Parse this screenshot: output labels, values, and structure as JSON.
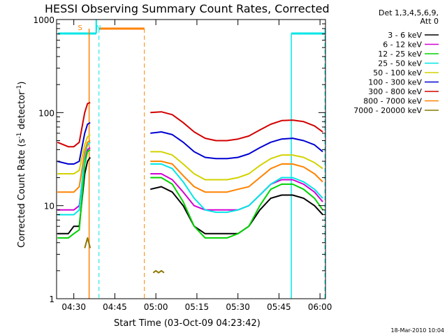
{
  "chart_data": {
    "type": "line",
    "title": "HESSI Observing Summary Count Rates, Corrected",
    "xlabel": "Start Time (03-Oct-09 04:23:42)",
    "ylabel": "Corrected Count Rate (s⁻¹ detector⁻¹)",
    "ylabel_main": "Corrected Count Rate (s",
    "ylabel_sup1": "-1",
    "ylabel_mid": " detector",
    "ylabel_sup2": "-1",
    "ylabel_end": ")",
    "yscale": "log",
    "ylim": [
      1,
      1000
    ],
    "xlim_minutes": [
      23.7,
      122.0
    ],
    "x_ticks": [
      {
        "label": "04:30",
        "minute": 30
      },
      {
        "label": "04:45",
        "minute": 45
      },
      {
        "label": "05:00",
        "minute": 60
      },
      {
        "label": "05:15",
        "minute": 75
      },
      {
        "label": "05:30",
        "minute": 90
      },
      {
        "label": "05:45",
        "minute": 105
      },
      {
        "label": "06:00",
        "minute": 120
      }
    ],
    "y_ticks": [
      {
        "label": "1",
        "value": 1
      },
      {
        "label": "10",
        "value": 10
      },
      {
        "label": "100",
        "value": 100
      },
      {
        "label": "1000",
        "value": 1000
      }
    ],
    "legend_header": [
      "Det 1,3,4,5,6,9,",
      "Att 0"
    ],
    "series": [
      {
        "name": "3 - 6 keV",
        "color": "#000000",
        "key": [
          [
            24,
            5
          ],
          [
            28,
            5
          ],
          [
            30,
            6
          ],
          [
            32,
            6
          ],
          [
            34,
            22
          ],
          [
            35,
            30
          ],
          [
            36,
            33
          ],
          [
            57.5,
            null
          ],
          [
            58,
            15
          ],
          [
            62,
            16
          ],
          [
            66,
            14
          ],
          [
            70,
            10
          ],
          [
            74,
            6
          ],
          [
            78,
            5
          ],
          [
            82,
            5
          ],
          [
            86,
            5
          ],
          [
            90,
            5
          ],
          [
            94,
            6
          ],
          [
            98,
            9
          ],
          [
            102,
            12
          ],
          [
            106,
            13
          ],
          [
            110,
            13
          ],
          [
            114,
            12
          ],
          [
            118,
            10
          ],
          [
            121,
            8
          ]
        ]
      },
      {
        "name": "6 - 12 keV",
        "color": "#d200d2",
        "key": [
          [
            24,
            9
          ],
          [
            28,
            9
          ],
          [
            30,
            9
          ],
          [
            32,
            10
          ],
          [
            34,
            30
          ],
          [
            35,
            40
          ],
          [
            36,
            42
          ],
          [
            57.5,
            null
          ],
          [
            58,
            22
          ],
          [
            62,
            22
          ],
          [
            66,
            19
          ],
          [
            70,
            14
          ],
          [
            74,
            10
          ],
          [
            78,
            9
          ],
          [
            82,
            9
          ],
          [
            86,
            9
          ],
          [
            90,
            9
          ],
          [
            94,
            10
          ],
          [
            98,
            13
          ],
          [
            102,
            17
          ],
          [
            106,
            19
          ],
          [
            110,
            19
          ],
          [
            114,
            17
          ],
          [
            118,
            14
          ],
          [
            121,
            11
          ]
        ]
      },
      {
        "name": "12 - 25 keV",
        "color": "#00d200",
        "key": [
          [
            24,
            4.5
          ],
          [
            28,
            4.5
          ],
          [
            30,
            5
          ],
          [
            32,
            5.5
          ],
          [
            34,
            28
          ],
          [
            35,
            38
          ],
          [
            36,
            40
          ],
          [
            57.5,
            null
          ],
          [
            58,
            20
          ],
          [
            62,
            20
          ],
          [
            66,
            17
          ],
          [
            70,
            11
          ],
          [
            74,
            6
          ],
          [
            78,
            4.5
          ],
          [
            82,
            4.5
          ],
          [
            86,
            4.5
          ],
          [
            90,
            5
          ],
          [
            94,
            6
          ],
          [
            98,
            10
          ],
          [
            102,
            15
          ],
          [
            106,
            17
          ],
          [
            110,
            17
          ],
          [
            114,
            15
          ],
          [
            118,
            12
          ],
          [
            121,
            9
          ]
        ]
      },
      {
        "name": "25 - 50 keV",
        "color": "#00e6e6",
        "key": [
          [
            24,
            8
          ],
          [
            28,
            8
          ],
          [
            30,
            8
          ],
          [
            32,
            9
          ],
          [
            34,
            35
          ],
          [
            35,
            45
          ],
          [
            36,
            48
          ],
          [
            57.5,
            null
          ],
          [
            58,
            28
          ],
          [
            62,
            28
          ],
          [
            66,
            25
          ],
          [
            70,
            18
          ],
          [
            74,
            12
          ],
          [
            78,
            9
          ],
          [
            82,
            8.5
          ],
          [
            86,
            8.5
          ],
          [
            90,
            9
          ],
          [
            94,
            10
          ],
          [
            98,
            13
          ],
          [
            102,
            17
          ],
          [
            106,
            20
          ],
          [
            110,
            20
          ],
          [
            114,
            18
          ],
          [
            118,
            15
          ],
          [
            121,
            12
          ]
        ]
      },
      {
        "name": "50 - 100 keV",
        "color": "#d2d200",
        "key": [
          [
            24,
            22
          ],
          [
            28,
            22
          ],
          [
            30,
            22
          ],
          [
            32,
            24
          ],
          [
            34,
            45
          ],
          [
            35,
            55
          ],
          [
            36,
            58
          ],
          [
            57.5,
            null
          ],
          [
            58,
            38
          ],
          [
            62,
            38
          ],
          [
            66,
            35
          ],
          [
            70,
            28
          ],
          [
            74,
            22
          ],
          [
            78,
            19
          ],
          [
            82,
            19
          ],
          [
            86,
            19
          ],
          [
            90,
            20
          ],
          [
            94,
            22
          ],
          [
            98,
            27
          ],
          [
            102,
            32
          ],
          [
            106,
            35
          ],
          [
            110,
            35
          ],
          [
            114,
            33
          ],
          [
            118,
            29
          ],
          [
            121,
            25
          ]
        ]
      },
      {
        "name": "100 - 300 keV",
        "color": "#0000d2",
        "key": [
          [
            24,
            30
          ],
          [
            28,
            28
          ],
          [
            30,
            28
          ],
          [
            32,
            30
          ],
          [
            34,
            60
          ],
          [
            35,
            75
          ],
          [
            36,
            78
          ],
          [
            57.5,
            null
          ],
          [
            58,
            60
          ],
          [
            62,
            62
          ],
          [
            66,
            58
          ],
          [
            70,
            48
          ],
          [
            74,
            38
          ],
          [
            78,
            33
          ],
          [
            82,
            32
          ],
          [
            86,
            32
          ],
          [
            90,
            33
          ],
          [
            94,
            36
          ],
          [
            98,
            42
          ],
          [
            102,
            48
          ],
          [
            106,
            52
          ],
          [
            110,
            53
          ],
          [
            114,
            50
          ],
          [
            118,
            45
          ],
          [
            121,
            38
          ]
        ]
      },
      {
        "name": "300 - 800 keV",
        "color": "#d20000",
        "key": [
          [
            24,
            48
          ],
          [
            28,
            43
          ],
          [
            30,
            43
          ],
          [
            32,
            48
          ],
          [
            34,
            100
          ],
          [
            35,
            125
          ],
          [
            36,
            128
          ],
          [
            57.5,
            null
          ],
          [
            58,
            100
          ],
          [
            62,
            102
          ],
          [
            66,
            95
          ],
          [
            70,
            78
          ],
          [
            74,
            62
          ],
          [
            78,
            53
          ],
          [
            82,
            50
          ],
          [
            86,
            50
          ],
          [
            90,
            52
          ],
          [
            94,
            56
          ],
          [
            98,
            65
          ],
          [
            102,
            75
          ],
          [
            106,
            82
          ],
          [
            110,
            83
          ],
          [
            114,
            80
          ],
          [
            118,
            72
          ],
          [
            121,
            62
          ]
        ]
      },
      {
        "name": "800 - 7000 keV",
        "color": "#ff8200",
        "key": [
          [
            24,
            14
          ],
          [
            28,
            14
          ],
          [
            30,
            14
          ],
          [
            32,
            16
          ],
          [
            34,
            38
          ],
          [
            35,
            48
          ],
          [
            36,
            50
          ],
          [
            57.5,
            null
          ],
          [
            58,
            30
          ],
          [
            62,
            30
          ],
          [
            66,
            28
          ],
          [
            70,
            21
          ],
          [
            74,
            16
          ],
          [
            78,
            14
          ],
          [
            82,
            14
          ],
          [
            86,
            14
          ],
          [
            90,
            15
          ],
          [
            94,
            16
          ],
          [
            98,
            20
          ],
          [
            102,
            25
          ],
          [
            106,
            28
          ],
          [
            110,
            28
          ],
          [
            114,
            26
          ],
          [
            118,
            22
          ],
          [
            121,
            18
          ]
        ]
      },
      {
        "name": "7000 - 20000 keV",
        "color": "#8c7800",
        "key": [
          [
            24,
            null
          ],
          [
            33,
            null
          ],
          [
            34,
            3.5
          ],
          [
            35,
            4.5
          ],
          [
            36,
            3.5
          ],
          [
            37,
            null
          ],
          [
            59,
            1.9
          ],
          [
            60,
            2.0
          ],
          [
            61,
            1.9
          ],
          [
            62,
            2.0
          ],
          [
            63,
            1.9
          ],
          [
            64,
            null
          ]
        ]
      }
    ],
    "annotations": [
      {
        "text": "S",
        "color": "#ff8200",
        "minute": 32.3,
        "at_value": 800
      },
      {
        "text": "N",
        "color": "#00e6e6",
        "minute": 39.0,
        "at_value": 800
      }
    ],
    "footer_timestamp": "18-Mar-2010 10:04"
  }
}
